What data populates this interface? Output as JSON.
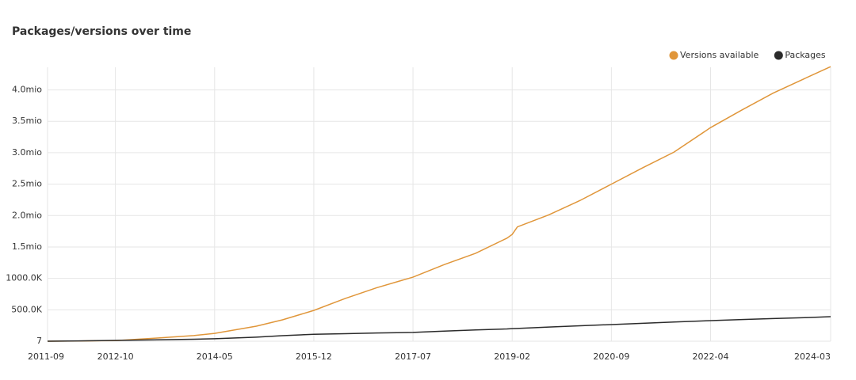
{
  "chart_data": {
    "type": "line",
    "title": "Packages/versions over time",
    "x": [
      "2011-09",
      "2012-03",
      "2012-10",
      "2013-06",
      "2014-01",
      "2014-05",
      "2015-01",
      "2015-06",
      "2015-12",
      "2016-06",
      "2016-12",
      "2017-07",
      "2018-01",
      "2018-07",
      "2019-01",
      "2019-02",
      "2019-03",
      "2019-09",
      "2020-03",
      "2020-09",
      "2021-03",
      "2021-09",
      "2022-04",
      "2022-10",
      "2023-04",
      "2023-10",
      "2024-03"
    ],
    "series": [
      {
        "name": "Versions available",
        "color": "#e0963a",
        "values": [
          0,
          3000,
          10000,
          50000,
          90000,
          125000,
          240000,
          340000,
          490000,
          680000,
          850000,
          1020000,
          1220000,
          1400000,
          1640000,
          1700000,
          1820000,
          2010000,
          2240000,
          2500000,
          2760000,
          3010000,
          3400000,
          3680000,
          3950000,
          4180000,
          4370000
        ]
      },
      {
        "name": "Packages",
        "color": "#2b2b2b",
        "values": [
          0,
          5000,
          12000,
          22000,
          32000,
          40000,
          65000,
          88000,
          110000,
          120000,
          130000,
          140000,
          160000,
          180000,
          195000,
          200000,
          203000,
          225000,
          245000,
          265000,
          285000,
          305000,
          328000,
          345000,
          360000,
          375000,
          390000
        ]
      }
    ],
    "xlim": [
      "2011-09",
      "2024-03"
    ],
    "xticks": [
      "2011-09",
      "2012-10",
      "2014-05",
      "2015-12",
      "2017-07",
      "2019-02",
      "2020-09",
      "2022-04",
      "2024-03"
    ],
    "ylim": [
      7,
      4360000
    ],
    "yticks": [
      7,
      {
        "value": 500000,
        "label": "500.0K"
      },
      {
        "value": 1000000,
        "label": "1000.0K"
      },
      {
        "value": 1500000,
        "label": "1.5mio"
      },
      {
        "value": 2000000,
        "label": "2.0mio"
      },
      {
        "value": 2500000,
        "label": "2.5mio"
      },
      {
        "value": 3000000,
        "label": "3.0mio"
      },
      {
        "value": 3500000,
        "label": "3.5mio"
      },
      {
        "value": 4000000,
        "label": "4.0mio"
      }
    ],
    "grid": true
  }
}
